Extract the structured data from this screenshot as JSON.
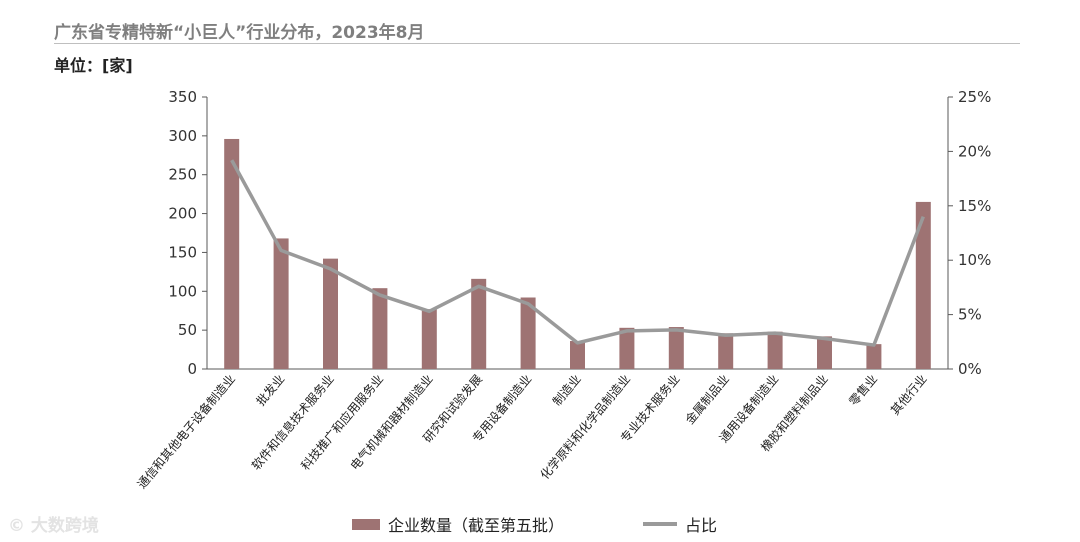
{
  "title": "广东省专精特新“小巨人”行业分布，2023年8月",
  "unit_label": "单位：[家]",
  "watermark": "© 大数跨境",
  "colors": {
    "bar": "#9e7373",
    "line": "#9a9a9a",
    "axis": "#595959",
    "title": "#7f7f7f"
  },
  "chart_data": {
    "type": "bar",
    "title": "广东省专精特新“小巨人”行业分布，2023年8月",
    "categories": [
      "通信和其他电子设备制造业",
      "批发业",
      "软件和信息技术服务业",
      "科技推广和应用服务业",
      "电气机械和器材制造业",
      "研究和试验发展",
      "专用设备制造业",
      "制造业",
      "化学原料和化学品制造业",
      "专业技术服务业",
      "金属制品业",
      "通用设备制造业",
      "橡胶和塑料制品业",
      "零售业",
      "其他行业"
    ],
    "series": [
      {
        "name": "企业数量（截至第五批）",
        "type": "bar",
        "axis": "left",
        "values": [
          296,
          168,
          142,
          104,
          77,
          116,
          92,
          36,
          53,
          54,
          46,
          48,
          42,
          32,
          215
        ]
      },
      {
        "name": "占比",
        "type": "line",
        "axis": "right",
        "values": [
          19.2,
          10.9,
          9.2,
          6.8,
          5.3,
          7.6,
          6.0,
          2.4,
          3.5,
          3.6,
          3.1,
          3.3,
          2.8,
          2.2,
          14.0
        ]
      }
    ],
    "ylim": [
      0,
      350
    ],
    "y_ticks": [
      "0",
      "50",
      "100",
      "150",
      "200",
      "250",
      "300",
      "350"
    ],
    "y2lim": [
      0,
      25
    ],
    "y2_ticks": [
      "0%",
      "5%",
      "10%",
      "15%",
      "20%",
      "25%"
    ],
    "legend_position": "bottom",
    "grid": false
  }
}
